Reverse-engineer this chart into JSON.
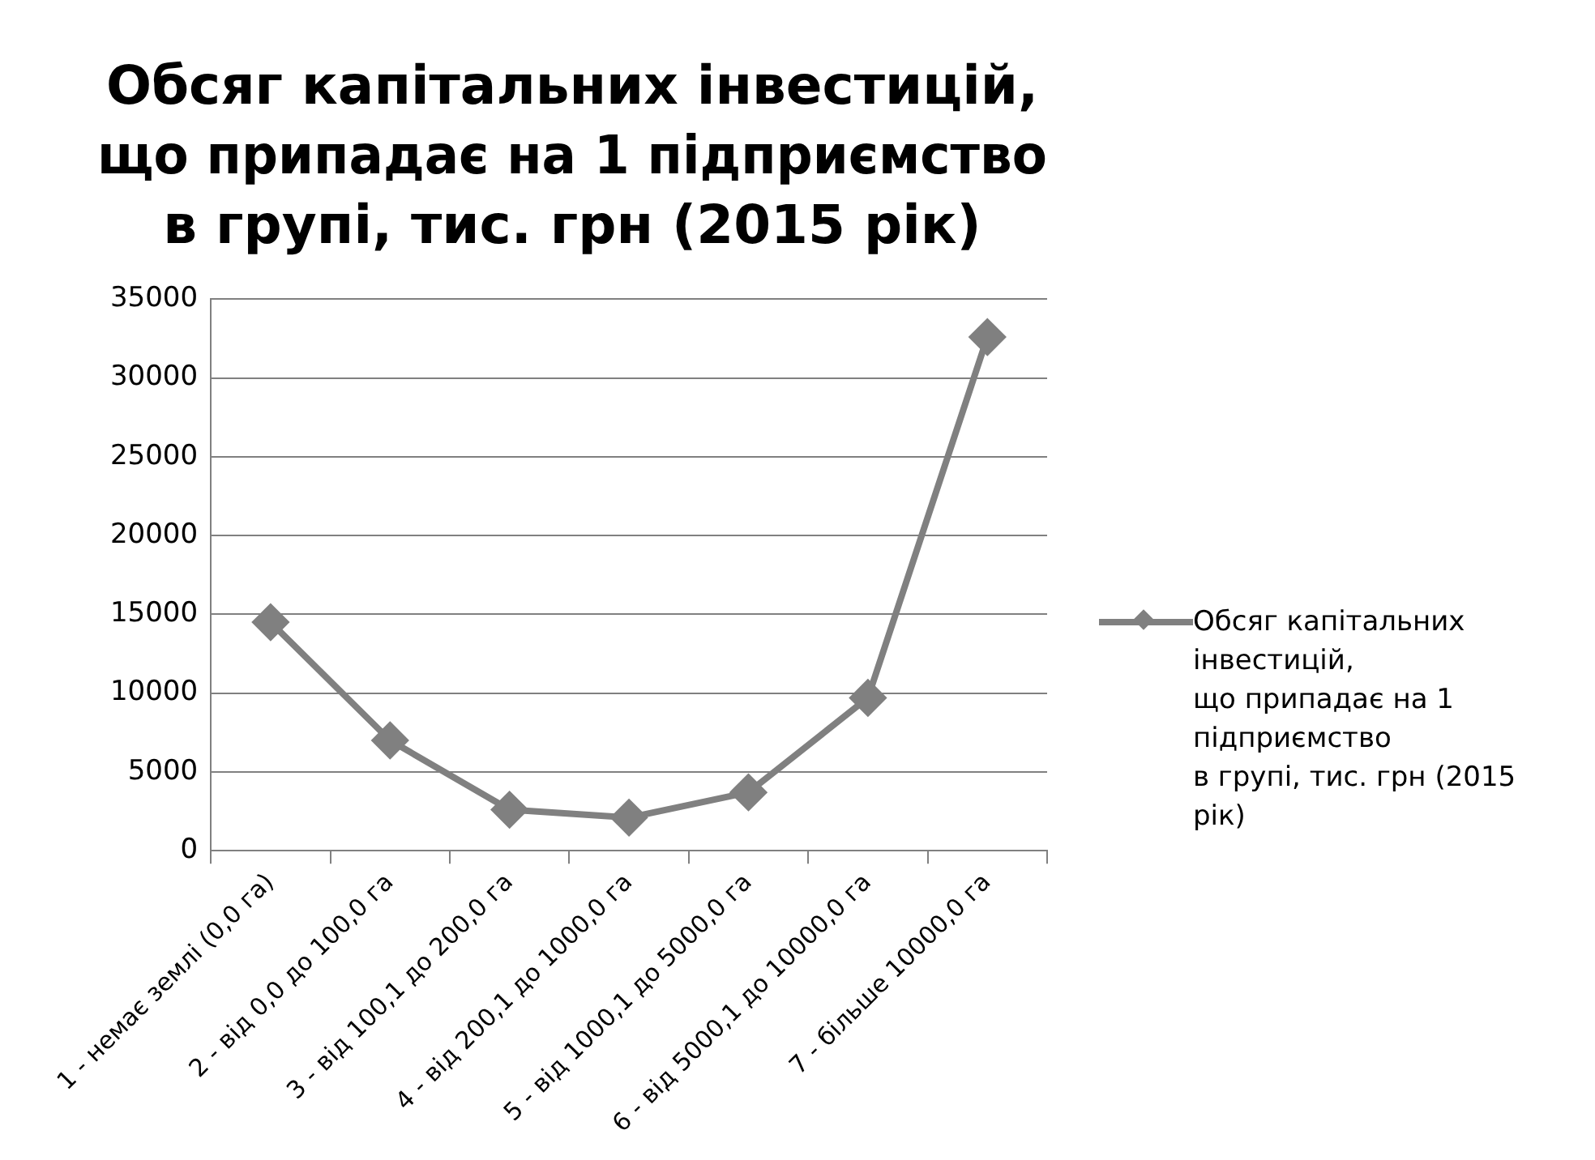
{
  "chart_data": {
    "type": "line",
    "title": "Обсяг капітальних інвестицій,\nщо припадає на 1 підприємство\nв групі, тис. грн (2015 рік)",
    "categories": [
      "1 - немає землі (0,0 га)",
      "2 - від 0,0 до 100,0 га",
      "3 - від 100,1 до 200,0 га",
      "4 - від 200,1 до 1000,0 га",
      "5 - від 1000,1 до 5000,0 га",
      "6 - від 5000,1 до 10000,0 га",
      "7 - більше 10000,0 га"
    ],
    "series": [
      {
        "name": "Обсяг капітальних інвестицій,\nщо припадає на 1 підприємство\nв групі, тис. грн (2015 рік)",
        "color": "#808080",
        "values": [
          14500,
          7000,
          2600,
          2100,
          3700,
          9700,
          32600
        ]
      }
    ],
    "ylim": [
      0,
      35000
    ],
    "yticks": [
      0,
      5000,
      10000,
      15000,
      20000,
      25000,
      30000,
      35000
    ],
    "grid": "y",
    "legend": "right",
    "marker": "diamond",
    "line_style": "solid"
  }
}
